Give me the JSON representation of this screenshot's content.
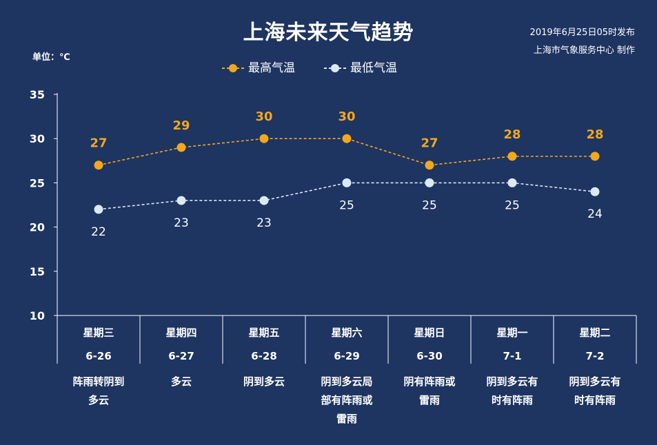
{
  "header": {
    "title": "上海未来天气趋势",
    "issued": "2019年6月25日05时发布",
    "maker": "上海市气象服务中心   制作",
    "unit": "单位：℃"
  },
  "legend": {
    "high_label": "最高气温",
    "low_label": "最低气温"
  },
  "colors": {
    "background": "#1e3461",
    "high": "#f2a81c",
    "low": "#dbe9f6"
  },
  "days": [
    {
      "week": "星期三",
      "date": "6-26",
      "weather": "阵雨转阴到多云"
    },
    {
      "week": "星期四",
      "date": "6-27",
      "weather": "多云"
    },
    {
      "week": "星期五",
      "date": "6-28",
      "weather": "阴到多云"
    },
    {
      "week": "星期六",
      "date": "6-29",
      "weather": "阴到多云局部有阵雨或雷雨"
    },
    {
      "week": "星期日",
      "date": "6-30",
      "weather": "阴有阵雨或雷雨"
    },
    {
      "week": "星期一",
      "date": "7-1",
      "weather": "阴到多云有时有阵雨"
    },
    {
      "week": "星期二",
      "date": "7-2",
      "weather": "阴到多云有时有阵雨"
    }
  ],
  "chart_data": {
    "type": "line",
    "categories": [
      "6-26",
      "6-27",
      "6-28",
      "6-29",
      "6-30",
      "7-1",
      "7-2"
    ],
    "series": [
      {
        "name": "最高气温",
        "values": [
          27,
          29,
          30,
          30,
          27,
          28,
          28
        ]
      },
      {
        "name": "最低气温",
        "values": [
          22,
          23,
          23,
          25,
          25,
          25,
          24
        ]
      }
    ],
    "title": "上海未来天气趋势",
    "ylabel": "单位：℃",
    "ylim": [
      10,
      35
    ],
    "yticks": [
      10,
      15,
      20,
      25,
      30,
      35
    ],
    "grid": false,
    "legend_position": "top-center"
  }
}
